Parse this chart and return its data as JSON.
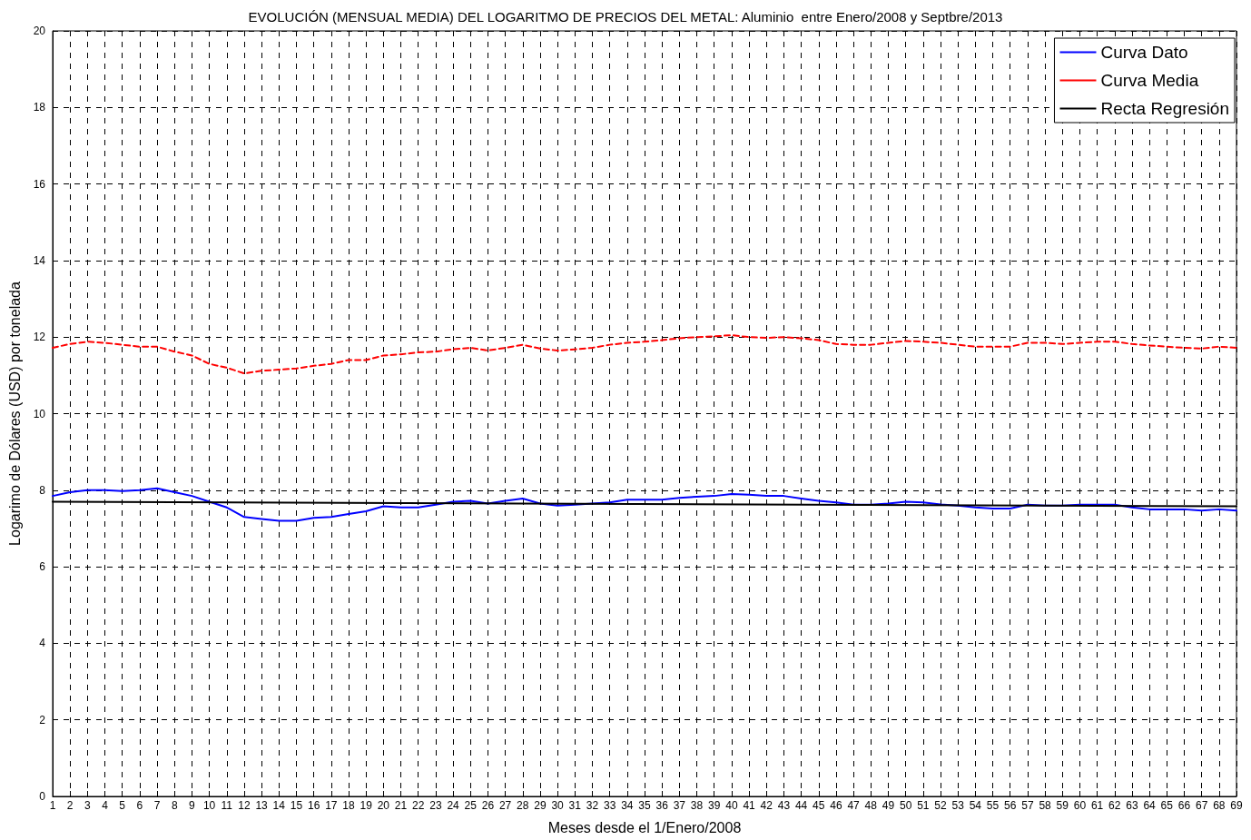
{
  "chart_data": {
    "type": "line",
    "title": "EVOLUCIÓN (MENSUAL MEDIA) DEL LOGARITMO DE PRECIOS DEL METAL: Aluminio  entre Enero/2008 y Septbre/2013",
    "xlabel": "Meses desde el 1/Enero/2008",
    "ylabel": "Logarimo de Dólares (USD) por tonelada",
    "x": [
      1,
      2,
      3,
      4,
      5,
      6,
      7,
      8,
      9,
      10,
      11,
      12,
      13,
      14,
      15,
      16,
      17,
      18,
      19,
      20,
      21,
      22,
      23,
      24,
      25,
      26,
      27,
      28,
      29,
      30,
      31,
      32,
      33,
      34,
      35,
      36,
      37,
      38,
      39,
      40,
      41,
      42,
      43,
      44,
      45,
      46,
      47,
      48,
      49,
      50,
      51,
      52,
      53,
      54,
      55,
      56,
      57,
      58,
      59,
      60,
      61,
      62,
      63,
      64,
      65,
      66,
      67,
      68,
      69
    ],
    "series": [
      {
        "name": "Curva Dato",
        "color": "#0000ff",
        "line_style": "solid",
        "values": [
          7.85,
          7.95,
          8.0,
          8.0,
          7.98,
          8.0,
          8.05,
          7.95,
          7.85,
          7.7,
          7.55,
          7.3,
          7.25,
          7.2,
          7.2,
          7.28,
          7.3,
          7.38,
          7.45,
          7.58,
          7.55,
          7.55,
          7.62,
          7.7,
          7.72,
          7.65,
          7.72,
          7.78,
          7.65,
          7.6,
          7.62,
          7.65,
          7.68,
          7.75,
          7.75,
          7.75,
          7.8,
          7.83,
          7.85,
          7.9,
          7.88,
          7.85,
          7.85,
          7.78,
          7.72,
          7.68,
          7.62,
          7.62,
          7.65,
          7.7,
          7.68,
          7.63,
          7.6,
          7.55,
          7.52,
          7.52,
          7.62,
          7.6,
          7.6,
          7.62,
          7.62,
          7.62,
          7.55,
          7.5,
          7.5,
          7.5,
          7.47,
          7.5,
          7.47
        ]
      },
      {
        "name": "Curva Media",
        "color": "#ff0000",
        "line_style": "dashed",
        "values": [
          11.72,
          11.82,
          11.88,
          11.85,
          11.8,
          11.75,
          11.75,
          11.62,
          11.52,
          11.3,
          11.2,
          11.05,
          11.12,
          11.15,
          11.18,
          11.25,
          11.3,
          11.4,
          11.4,
          11.52,
          11.55,
          11.6,
          11.62,
          11.68,
          11.72,
          11.65,
          11.72,
          11.8,
          11.7,
          11.65,
          11.68,
          11.72,
          11.8,
          11.85,
          11.88,
          11.92,
          11.97,
          12.0,
          12.02,
          12.05,
          12.0,
          11.98,
          12.0,
          11.97,
          11.92,
          11.82,
          11.8,
          11.8,
          11.85,
          11.9,
          11.88,
          11.85,
          11.8,
          11.75,
          11.75,
          11.75,
          11.85,
          11.85,
          11.82,
          11.85,
          11.88,
          11.88,
          11.82,
          11.78,
          11.75,
          11.72,
          11.7,
          11.75,
          11.72
        ]
      },
      {
        "name": "Recta Regresión",
        "color": "#000000",
        "line_style": "solid",
        "x": [
          1,
          69
        ],
        "values": [
          7.7,
          7.58
        ]
      }
    ],
    "xlim": [
      1,
      69
    ],
    "xticks": [
      1,
      2,
      3,
      4,
      5,
      6,
      7,
      8,
      9,
      10,
      11,
      12,
      13,
      14,
      15,
      16,
      17,
      18,
      19,
      20,
      21,
      22,
      23,
      24,
      25,
      26,
      27,
      28,
      29,
      30,
      31,
      32,
      33,
      34,
      35,
      36,
      37,
      38,
      39,
      40,
      41,
      42,
      43,
      44,
      45,
      46,
      47,
      48,
      49,
      50,
      51,
      52,
      53,
      54,
      55,
      56,
      57,
      58,
      59,
      60,
      61,
      62,
      63,
      64,
      65,
      66,
      67,
      68,
      69
    ],
    "ylim": [
      0,
      20
    ],
    "yticks": [
      0,
      2,
      4,
      6,
      8,
      10,
      12,
      14,
      16,
      18,
      20
    ],
    "grid": true,
    "legend": "top right",
    "marker": "none"
  }
}
